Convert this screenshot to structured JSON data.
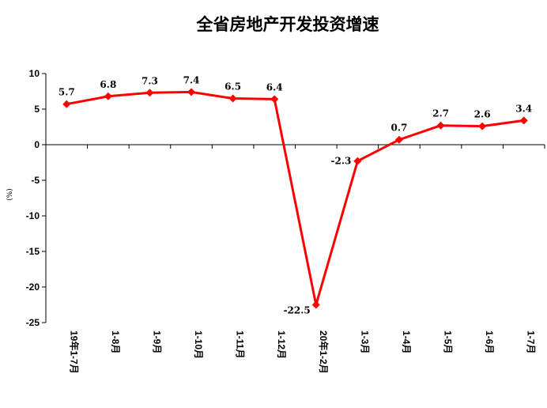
{
  "chart_data": {
    "type": "line",
    "title": "全省房地产开发投资增速",
    "ylabel": "(%)",
    "xlabel": "",
    "ylim": [
      -25,
      10
    ],
    "yticks": [
      10,
      5,
      0,
      -5,
      -10,
      -15,
      -20,
      -25
    ],
    "categories": [
      "19年1-7月",
      "1-8月",
      "1-9月",
      "1-10月",
      "1-11月",
      "1-12月",
      "20年1-2月",
      "1-3月",
      "1-4月",
      "1-5月",
      "1-6月",
      "1-7月"
    ],
    "series": [
      {
        "values": [
          5.7,
          6.8,
          7.3,
          7.4,
          6.5,
          6.4,
          -22.5,
          -2.3,
          0.7,
          2.7,
          2.6,
          3.4
        ],
        "labels": [
          "5.7",
          "6.8",
          "7.3",
          "7.4",
          "6.5",
          "6.4",
          "-22.5",
          "-2.3",
          "0.7",
          "2.7",
          "2.6",
          "3.4"
        ],
        "color": "#ff0000"
      }
    ],
    "grid": false,
    "legend": "none"
  }
}
